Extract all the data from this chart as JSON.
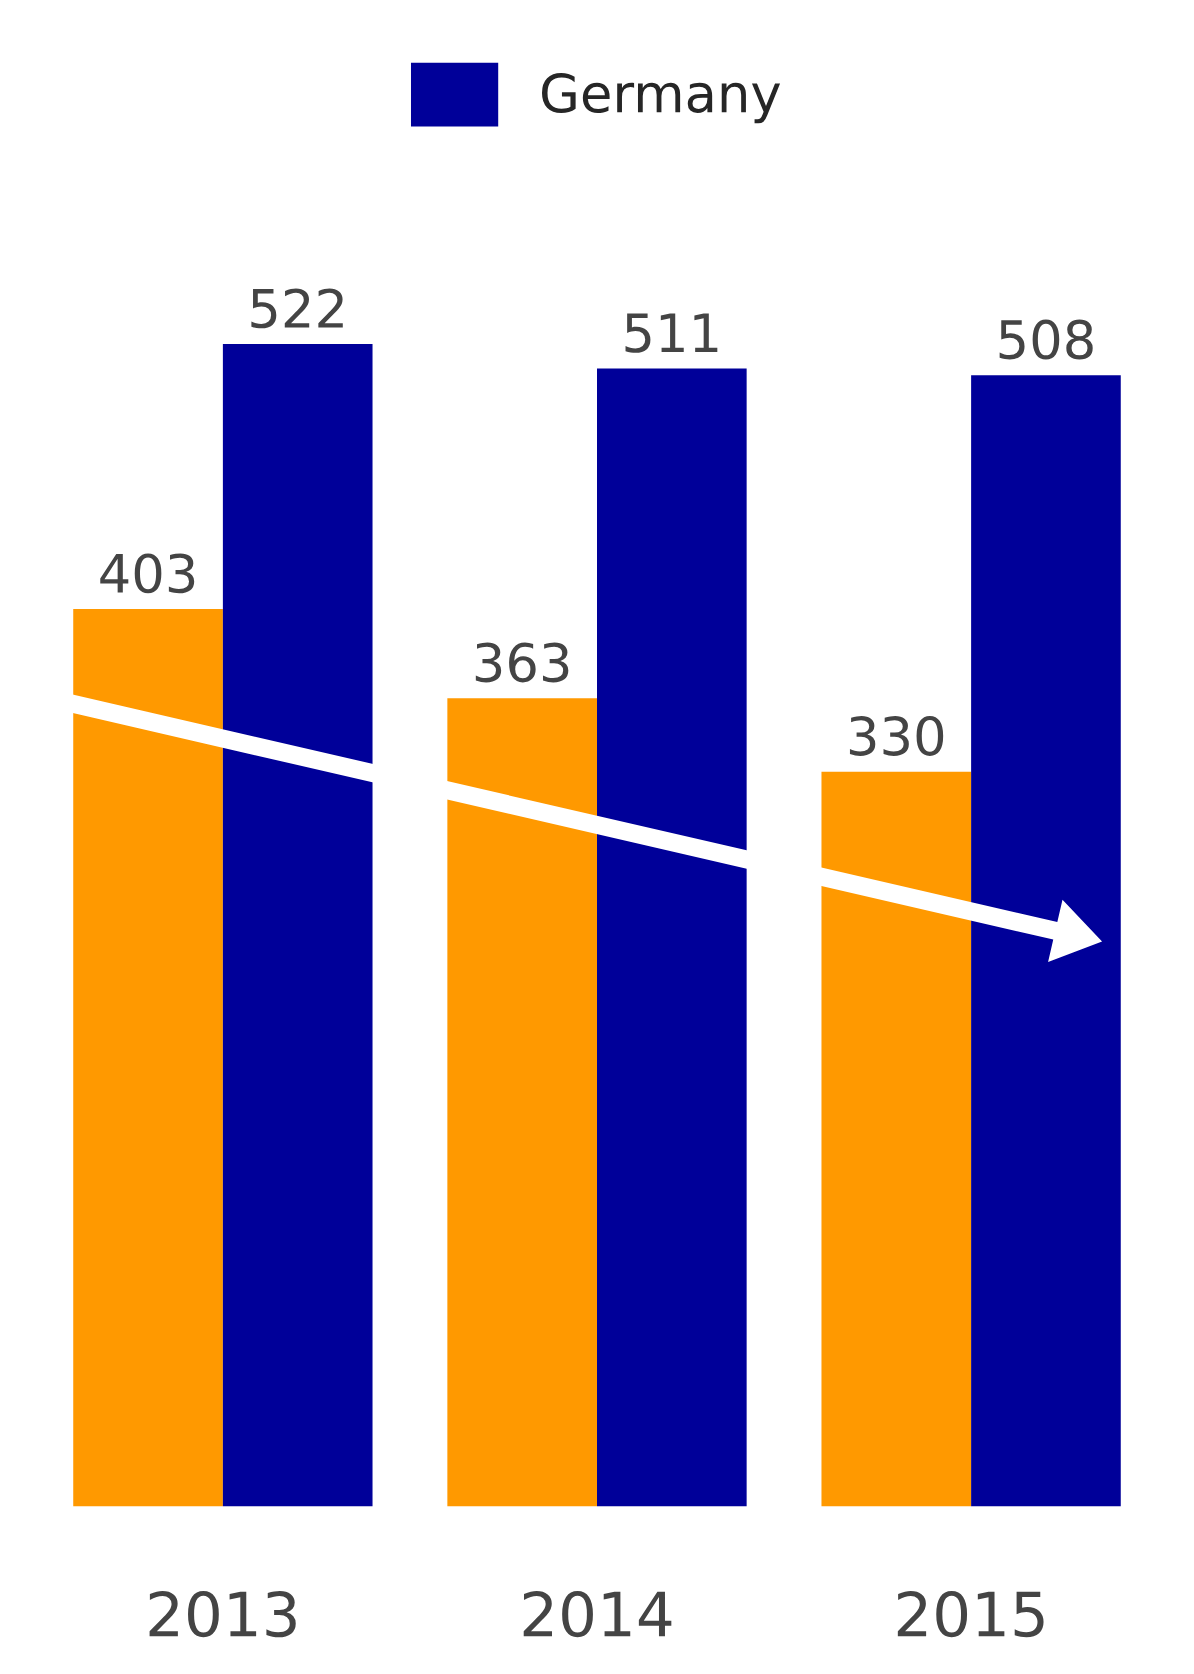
{
  "chart_data": {
    "type": "bar",
    "categories": [
      "2013",
      "2014",
      "2015"
    ],
    "series": [
      {
        "color": "#ff9900",
        "values": [
          403,
          363,
          330
        ]
      },
      {
        "name": "Germany",
        "color": "#000099",
        "values": [
          522,
          511,
          508
        ]
      }
    ],
    "data_labels": true,
    "legend": "top",
    "grid": false
  }
}
